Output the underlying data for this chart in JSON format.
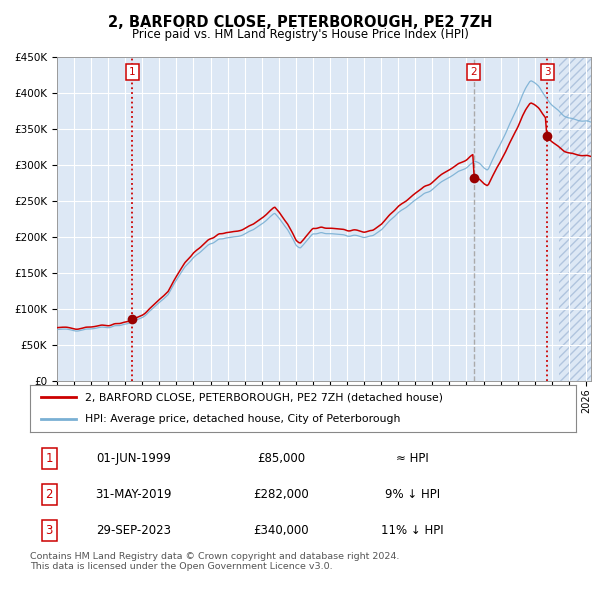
{
  "title": "2, BARFORD CLOSE, PETERBOROUGH, PE2 7ZH",
  "subtitle": "Price paid vs. HM Land Registry's House Price Index (HPI)",
  "ylim": [
    0,
    450000
  ],
  "xlim_start": 1995.0,
  "xlim_end": 2026.3,
  "bg_color": "#dde8f5",
  "grid_color": "#ffffff",
  "hpi_line_color": "#7ab0d4",
  "price_line_color": "#cc0000",
  "dot_color": "#990000",
  "vline1_color": "#cc0000",
  "vline2_color": "#aaaaaa",
  "vline3_color": "#cc0000",
  "hatch_start": 2024.4,
  "transaction_dates": [
    1999.417,
    2019.42,
    2023.75
  ],
  "transaction_prices": [
    85000,
    282000,
    340000
  ],
  "transaction_labels": [
    "1",
    "2",
    "3"
  ],
  "transaction_info": [
    {
      "num": "1",
      "date": "01-JUN-1999",
      "price": "£85,000",
      "hpi": "≈ HPI"
    },
    {
      "num": "2",
      "date": "31-MAY-2019",
      "price": "£282,000",
      "hpi": "9% ↓ HPI"
    },
    {
      "num": "3",
      "date": "29-SEP-2023",
      "price": "£340,000",
      "hpi": "11% ↓ HPI"
    }
  ],
  "legend_line1": "2, BARFORD CLOSE, PETERBOROUGH, PE2 7ZH (detached house)",
  "legend_line2": "HPI: Average price, detached house, City of Peterborough",
  "footnote": "Contains HM Land Registry data © Crown copyright and database right 2024.\nThis data is licensed under the Open Government Licence v3.0.",
  "xtick_years": [
    1995,
    1996,
    1997,
    1998,
    1999,
    2000,
    2001,
    2002,
    2003,
    2004,
    2005,
    2006,
    2007,
    2008,
    2009,
    2010,
    2011,
    2012,
    2013,
    2014,
    2015,
    2016,
    2017,
    2018,
    2019,
    2020,
    2021,
    2022,
    2023,
    2024,
    2025,
    2026
  ],
  "ytick_vals": [
    0,
    50000,
    100000,
    150000,
    200000,
    250000,
    300000,
    350000,
    400000,
    450000
  ],
  "ytick_labels": [
    "£0",
    "£50K",
    "£100K",
    "£150K",
    "£200K",
    "£250K",
    "£300K",
    "£350K",
    "£400K",
    "£450K"
  ]
}
